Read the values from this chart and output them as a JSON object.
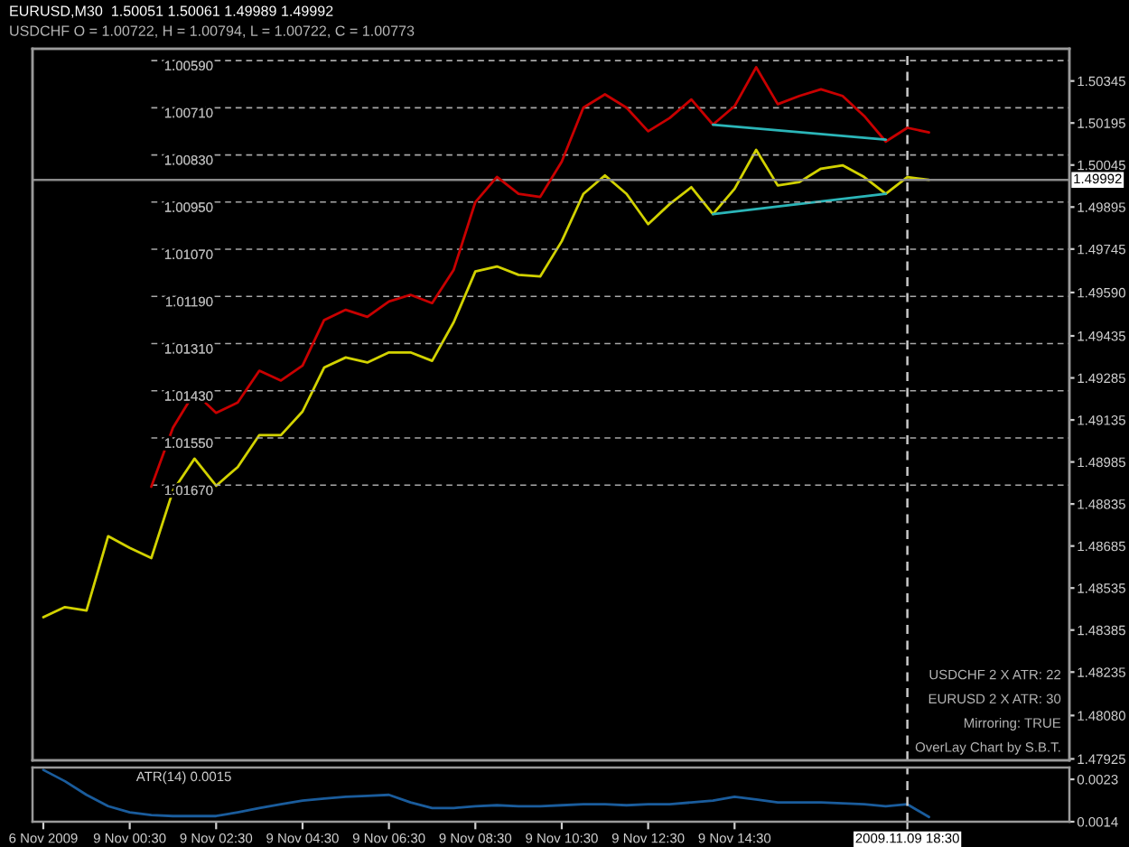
{
  "chart_data": [
    {
      "type": "line",
      "title": "EURUSD,M30  1.50051 1.50061 1.49989 1.49992",
      "subtitle": "USDCHF O = 1.00722, H = 1.00794, L = 1.00722, C = 1.00773",
      "categories": [
        "6 Nov 2009",
        null,
        null,
        null,
        "9 Nov 00:30",
        null,
        null,
        null,
        "9 Nov 02:30",
        null,
        null,
        null,
        "9 Nov 04:30",
        null,
        null,
        null,
        "9 Nov 06:30",
        null,
        null,
        null,
        "9 Nov 08:30",
        null,
        null,
        null,
        "9 Nov 10:30",
        null,
        null,
        null,
        "9 Nov 12:30",
        null,
        null,
        null,
        "9 Nov 14:30",
        null,
        null,
        null,
        null,
        null,
        null,
        null,
        "2009.11.09 18:30",
        null,
        null,
        null,
        null,
        null,
        null,
        null
      ],
      "series": [
        {
          "color": "#d2d200",
          "values": [
            1.48431,
            1.48467,
            1.48455,
            1.4872,
            1.48678,
            1.48642,
            1.48882,
            1.48997,
            1.489,
            1.48967,
            1.49081,
            1.49081,
            1.49165,
            1.49322,
            1.49358,
            1.4934,
            1.49376,
            1.49376,
            1.49346,
            1.49484,
            1.49665,
            1.49683,
            1.49653,
            1.49647,
            1.49773,
            1.49942,
            1.50008,
            1.49942,
            1.49834,
            1.49906,
            1.49966,
            1.4987,
            1.4996,
            1.50099,
            1.49972,
            1.49984,
            1.50032,
            1.50044,
            1.50002,
            1.49942,
            1.50002,
            1.49992,
            null,
            null,
            null,
            null,
            null,
            null
          ]
        },
        {
          "color": "#c80000",
          "axis": "y2",
          "values": [
            null,
            null,
            null,
            null,
            null,
            1.01674,
            1.01524,
            1.01434,
            1.01486,
            1.0146,
            1.01379,
            1.01404,
            1.01366,
            1.0125,
            1.01224,
            1.01242,
            1.01203,
            1.01186,
            1.01207,
            1.01122,
            1.0095,
            1.00886,
            1.00929,
            1.00937,
            1.00847,
            1.0071,
            1.00676,
            1.0071,
            1.0077,
            1.00736,
            1.00689,
            1.00753,
            1.00706,
            1.00607,
            1.00701,
            1.0068,
            1.00663,
            1.0068,
            1.00731,
            1.00796,
            1.00761,
            1.00773,
            null,
            null,
            null,
            null,
            null,
            null
          ]
        },
        {
          "type": "line",
          "color": "#2bb5b8",
          "axis": "y2",
          "values": [
            null,
            null,
            null,
            null,
            null,
            null,
            null,
            null,
            null,
            null,
            null,
            null,
            null,
            null,
            null,
            null,
            null,
            null,
            null,
            null,
            null,
            null,
            null,
            null,
            null,
            null,
            null,
            null,
            null,
            null,
            null,
            1.00753,
            null,
            null,
            null,
            null,
            null,
            null,
            null,
            1.00791,
            null,
            null,
            null,
            null,
            null,
            null,
            null,
            null
          ]
        },
        {
          "type": "line",
          "color": "#2bb5b8",
          "values": [
            null,
            null,
            null,
            null,
            null,
            null,
            null,
            null,
            null,
            null,
            null,
            null,
            null,
            null,
            null,
            null,
            null,
            null,
            null,
            null,
            null,
            null,
            null,
            null,
            null,
            null,
            null,
            null,
            null,
            null,
            null,
            1.4987,
            null,
            null,
            null,
            null,
            null,
            null,
            null,
            1.49942,
            null,
            null,
            null,
            null,
            null,
            null,
            null,
            null
          ]
        }
      ],
      "ylim": [
        1.4792,
        1.5046
      ],
      "yticks": [
        1.47925,
        {
          "value": 1.4808,
          "label": "1.48080"
        },
        1.48235,
        1.48385,
        1.48535,
        1.48685,
        1.48835,
        1.48985,
        1.49135,
        1.49285,
        1.49435,
        {
          "value": 1.4959,
          "label": "1.49590"
        },
        1.49745,
        1.49895,
        1.50045,
        1.50195,
        1.50345
      ],
      "y2lim": [
        1.0237,
        1.0056
      ],
      "y2ticks": [
        {
          "value": 1.0059,
          "label": "1.00590"
        },
        {
          "value": 1.0071,
          "label": "1.00710"
        },
        {
          "value": 1.0083,
          "label": "1.00830"
        },
        {
          "value": 1.0095,
          "label": "1.00950"
        },
        {
          "value": 1.0107,
          "label": "1.01070"
        },
        {
          "value": 1.0119,
          "label": "1.01190"
        },
        {
          "value": 1.0131,
          "label": "1.01310"
        },
        {
          "value": 1.0143,
          "label": "1.01430"
        },
        {
          "value": 1.0155,
          "label": "1.01550"
        },
        {
          "value": 1.0167,
          "label": "1.01670"
        }
      ],
      "grid": "y2",
      "tick_labels": "y",
      "ref_lines": [
        {
          "axis": "y",
          "value": 1.49992,
          "label": "1.49992",
          "color": "#8a8a8a",
          "line_style": "solid"
        },
        {
          "axis": "x",
          "value": "2009.11.09 18:30",
          "color": "#c8c8c8",
          "line_style": "dashed"
        }
      ],
      "annotations": [
        "USDCHF 2 X ATR: 22",
        "EURUSD 2 X ATR: 30",
        "Mirroring: TRUE",
        "OverLay Chart by S.B.T."
      ]
    },
    {
      "type": "line",
      "title": "ATR(14) 0.0015",
      "categories": [
        "6 Nov 2009",
        null,
        null,
        null,
        "9 Nov 00:30",
        null,
        null,
        null,
        "9 Nov 02:30",
        null,
        null,
        null,
        "9 Nov 04:30",
        null,
        null,
        null,
        "9 Nov 06:30",
        null,
        null,
        null,
        "9 Nov 08:30",
        null,
        null,
        null,
        "9 Nov 10:30",
        null,
        null,
        null,
        "9 Nov 12:30",
        null,
        null,
        null,
        "9 Nov 14:30",
        null,
        null,
        null,
        null,
        null,
        null,
        null,
        "2009.11.09 18:30",
        null,
        null,
        null,
        null,
        null,
        null,
        null
      ],
      "series": [
        {
          "color": "#1a5c9c",
          "values": [
            0.0025,
            0.00226,
            0.00197,
            0.00173,
            0.0016,
            0.00154,
            0.00152,
            0.00152,
            0.00152,
            0.0016,
            0.00169,
            0.00177,
            0.00185,
            0.00189,
            0.00193,
            0.00195,
            0.00197,
            0.00181,
            0.00169,
            0.00169,
            0.00173,
            0.00175,
            0.00173,
            0.00173,
            0.00175,
            0.00177,
            0.00177,
            0.00175,
            0.00177,
            0.00177,
            0.00181,
            0.00185,
            0.00193,
            0.00187,
            0.00181,
            0.00181,
            0.00181,
            0.00179,
            0.00177,
            0.00173,
            0.00177,
            0.0015,
            null,
            null,
            null,
            null,
            null,
            null
          ]
        }
      ],
      "ylim": [
        0.0014,
        0.00255
      ],
      "yticks": [
        0.0014,
        0.0023
      ],
      "ref_lines": [
        {
          "axis": "x",
          "value": "2009.11.09 18:30",
          "color": "#c8c8c8",
          "line_style": "dashed"
        }
      ]
    }
  ]
}
